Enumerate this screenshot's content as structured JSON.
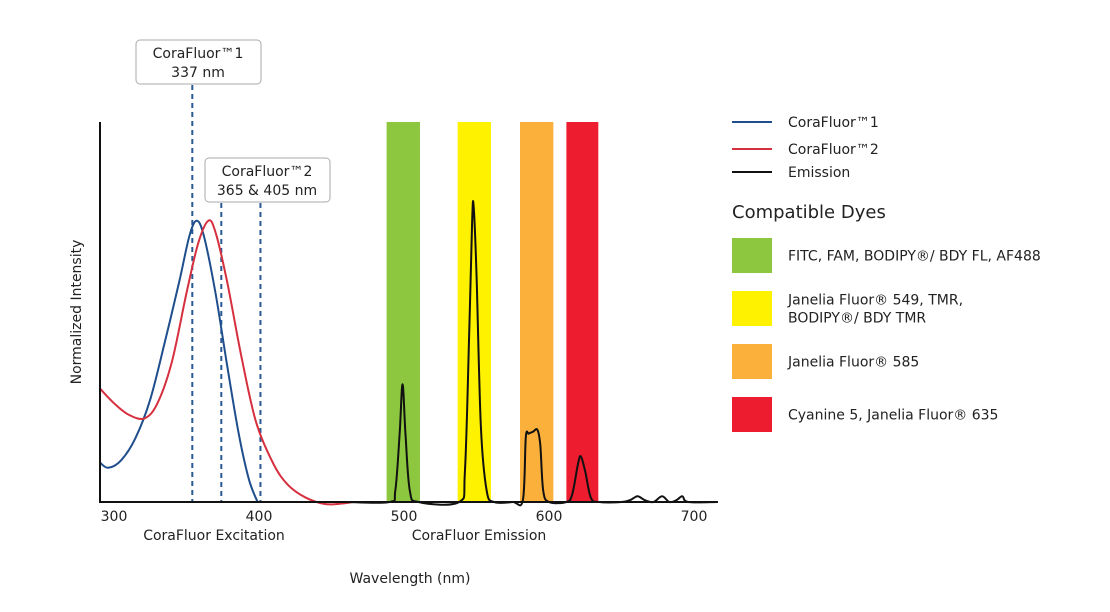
{
  "chart_data": {
    "type": "line",
    "xlabel": "Wavelength (nm)",
    "ylabel": "Normalized Intensity",
    "xlim": [
      290,
      716
    ],
    "ylim": [
      0,
      1
    ],
    "grid": false,
    "legend_position": "right",
    "x_ticks": [
      300,
      400,
      500,
      600,
      700
    ],
    "x_group_labels": [
      "CoraFluor Excitation",
      "CoraFluor Emission"
    ],
    "series": [
      {
        "name": "CoraFluor™1",
        "color": "#1f4e8c",
        "points": [
          [
            290,
            0.105
          ],
          [
            296,
            0.09
          ],
          [
            305,
            0.11
          ],
          [
            315,
            0.17
          ],
          [
            325,
            0.27
          ],
          [
            335,
            0.42
          ],
          [
            345,
            0.58
          ],
          [
            352,
            0.7
          ],
          [
            357,
            0.74
          ],
          [
            362,
            0.7
          ],
          [
            370,
            0.55
          ],
          [
            378,
            0.36
          ],
          [
            386,
            0.18
          ],
          [
            393,
            0.06
          ],
          [
            399,
            0.0
          ]
        ]
      },
      {
        "name": "CoraFluor™2",
        "color": "#d6303f",
        "points": [
          [
            290,
            0.3
          ],
          [
            300,
            0.26
          ],
          [
            310,
            0.23
          ],
          [
            321,
            0.22
          ],
          [
            330,
            0.26
          ],
          [
            340,
            0.37
          ],
          [
            350,
            0.55
          ],
          [
            358,
            0.68
          ],
          [
            365,
            0.74
          ],
          [
            370,
            0.71
          ],
          [
            378,
            0.58
          ],
          [
            388,
            0.38
          ],
          [
            398,
            0.21
          ],
          [
            410,
            0.1
          ],
          [
            420,
            0.045
          ],
          [
            432,
            0.012
          ],
          [
            445,
            -0.005
          ],
          [
            455,
            -0.005
          ],
          [
            465,
            0
          ]
        ]
      },
      {
        "name": "Emission",
        "color": "#111111",
        "points": [
          [
            460,
            0
          ],
          [
            490,
            0
          ],
          [
            494,
            0.03
          ],
          [
            497,
            0.18
          ],
          [
            499,
            0.31
          ],
          [
            501,
            0.18
          ],
          [
            504,
            0.03
          ],
          [
            510,
            0
          ],
          [
            538,
            0
          ],
          [
            542,
            0.08
          ],
          [
            545,
            0.45
          ],
          [
            547,
            0.74
          ],
          [
            548,
            0.78
          ],
          [
            550,
            0.6
          ],
          [
            553,
            0.2
          ],
          [
            557,
            0.03
          ],
          [
            562,
            0
          ],
          [
            575,
            0
          ],
          [
            582,
            0.005
          ],
          [
            584,
            0.17
          ],
          [
            586,
            0.18
          ],
          [
            589,
            0.185
          ],
          [
            592,
            0.19
          ],
          [
            594,
            0.15
          ],
          [
            596,
            0.03
          ],
          [
            600,
            0
          ],
          [
            612,
            0
          ],
          [
            616,
            0.02
          ],
          [
            620,
            0.1
          ],
          [
            622,
            0.12
          ],
          [
            625,
            0.08
          ],
          [
            629,
            0.01
          ],
          [
            635,
            0
          ],
          [
            650,
            0
          ],
          [
            656,
            0.005
          ],
          [
            661,
            0.015
          ],
          [
            666,
            0.005
          ],
          [
            672,
            0
          ],
          [
            678,
            0.015
          ],
          [
            683,
            0
          ],
          [
            688,
            0.005
          ],
          [
            692,
            0.015
          ],
          [
            696,
            0
          ],
          [
            716,
            0
          ]
        ]
      }
    ],
    "excitation_lines": [
      354,
      374,
      401
    ],
    "callouts": [
      {
        "line1": "CoraFluor™1",
        "line2": "337 nm"
      },
      {
        "line1": "CoraFluor™2",
        "line2": "365 & 405 nm"
      }
    ],
    "dye_bands_title": "Compatible Dyes",
    "dye_bands": [
      {
        "range": [
          488,
          511
        ],
        "color": "#8dc63f",
        "label": "FITC, FAM, BODIPY®/ BDY FL, AF488",
        "label_lines": [
          "FITC, FAM, BODIPY®/ BDY FL, AF488"
        ]
      },
      {
        "range": [
          537,
          560
        ],
        "color": "#fff200",
        "label": "Janelia Fluor® 549, TMR, BODIPY®/ BDY TMR",
        "label_lines": [
          "Janelia Fluor® 549, TMR,",
          "BODIPY®/ BDY TMR"
        ]
      },
      {
        "range": [
          580,
          603
        ],
        "color": "#fbb03b",
        "label": "Janelia Fluor® 585",
        "label_lines": [
          "Janelia Fluor® 585"
        ]
      },
      {
        "range": [
          612,
          634
        ],
        "color": "#ed1c2e",
        "label": "Cyanine 5, Janelia Fluor® 635",
        "label_lines": [
          "Cyanine 5, Janelia Fluor® 635"
        ]
      }
    ]
  }
}
